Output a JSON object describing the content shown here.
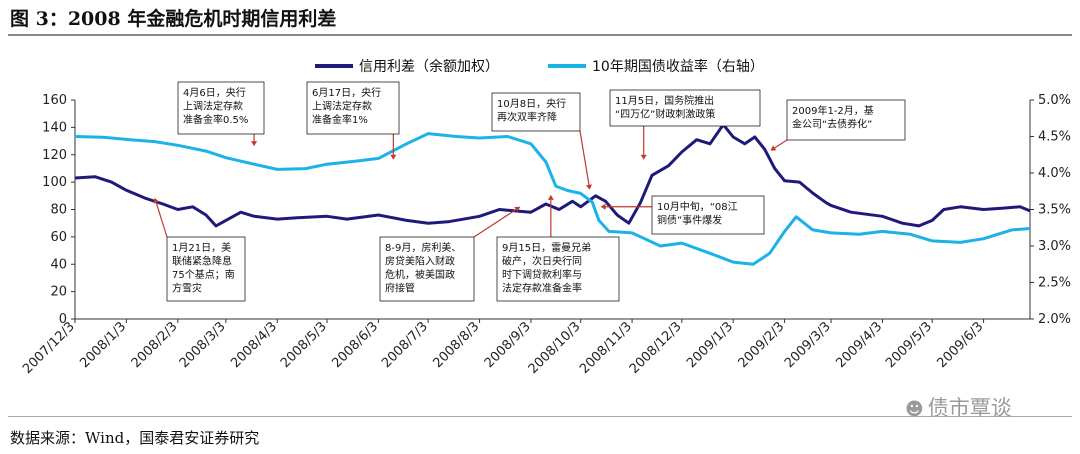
{
  "header": {
    "title": "图 3：2008 年金融危机时期信用利差"
  },
  "footer": {
    "source": "数据来源：Wind，国泰君安证券研究"
  },
  "watermark": {
    "text": "债市覃谈",
    "icon": "wechat-icon"
  },
  "colors": {
    "credit_spread": "#1f1a7a",
    "yield_10y": "#1ab2e8",
    "annotation_arrow": "#c0392b",
    "axis": "#333333"
  },
  "chart_data": {
    "type": "line",
    "title": "",
    "xlabel": "",
    "ylabel": "",
    "legend_position": "top-center",
    "grid": false,
    "x_ticks": [
      "2007/12/3",
      "2008/1/3",
      "2008/2/3",
      "2008/3/3",
      "2008/4/3",
      "2008/5/3",
      "2008/6/3",
      "2008/7/3",
      "2008/8/3",
      "2008/9/3",
      "2008/10/3",
      "2008/11/3",
      "2008/12/3",
      "2009/1/3",
      "2009/2/3",
      "2009/3/3",
      "2009/4/3",
      "2009/5/3",
      "2009/6/3"
    ],
    "x_range": [
      "2007/12/3",
      "2009/7/1"
    ],
    "y_left": {
      "range": [
        0,
        160
      ],
      "ticks": [
        "0",
        "20",
        "40",
        "60",
        "80",
        "100",
        "120",
        "140",
        "160"
      ]
    },
    "y_right": {
      "range": [
        2.0,
        5.0
      ],
      "ticks": [
        "2.0%",
        "2.5%",
        "3.0%",
        "3.5%",
        "4.0%",
        "4.5%",
        "5.0%"
      ]
    },
    "series": [
      {
        "name": "信用利差（余额加权）",
        "axis": "left",
        "color": "#1f1a7a",
        "points": [
          [
            "2007/12/3",
            103
          ],
          [
            "2007/12/15",
            104
          ],
          [
            "2007/12/25",
            100
          ],
          [
            "2008/1/3",
            94
          ],
          [
            "2008/1/15",
            88
          ],
          [
            "2008/1/25",
            84
          ],
          [
            "2008/2/3",
            80
          ],
          [
            "2008/2/12",
            82
          ],
          [
            "2008/2/20",
            76
          ],
          [
            "2008/2/26",
            68
          ],
          [
            "2008/3/3",
            72
          ],
          [
            "2008/3/12",
            78
          ],
          [
            "2008/3/20",
            75
          ],
          [
            "2008/4/3",
            73
          ],
          [
            "2008/4/15",
            74
          ],
          [
            "2008/5/3",
            75
          ],
          [
            "2008/5/15",
            73
          ],
          [
            "2008/6/3",
            76
          ],
          [
            "2008/6/20",
            72
          ],
          [
            "2008/7/3",
            70
          ],
          [
            "2008/7/15",
            71
          ],
          [
            "2008/8/3",
            75
          ],
          [
            "2008/8/15",
            80
          ],
          [
            "2008/9/3",
            78
          ],
          [
            "2008/9/12",
            84
          ],
          [
            "2008/9/20",
            80
          ],
          [
            "2008/9/28",
            86
          ],
          [
            "2008/10/3",
            82
          ],
          [
            "2008/10/12",
            90
          ],
          [
            "2008/10/18",
            86
          ],
          [
            "2008/10/25",
            76
          ],
          [
            "2008/11/1",
            70
          ],
          [
            "2008/11/8",
            85
          ],
          [
            "2008/11/15",
            105
          ],
          [
            "2008/11/25",
            112
          ],
          [
            "2008/12/3",
            122
          ],
          [
            "2008/12/12",
            131
          ],
          [
            "2008/12/20",
            128
          ],
          [
            "2008/12/28",
            142
          ],
          [
            "2009/1/3",
            133
          ],
          [
            "2009/1/10",
            128
          ],
          [
            "2009/1/16",
            133
          ],
          [
            "2009/1/22",
            124
          ],
          [
            "2009/1/28",
            110
          ],
          [
            "2009/2/3",
            101
          ],
          [
            "2009/2/12",
            100
          ],
          [
            "2009/2/20",
            92
          ],
          [
            "2009/2/28",
            85
          ],
          [
            "2009/3/3",
            83
          ],
          [
            "2009/3/15",
            78
          ],
          [
            "2009/4/3",
            75
          ],
          [
            "2009/4/15",
            70
          ],
          [
            "2009/4/25",
            68
          ],
          [
            "2009/5/3",
            72
          ],
          [
            "2009/5/10",
            80
          ],
          [
            "2009/5/20",
            82
          ],
          [
            "2009/6/3",
            80
          ],
          [
            "2009/6/15",
            81
          ],
          [
            "2009/6/25",
            82
          ],
          [
            "2009/7/1",
            79
          ]
        ]
      },
      {
        "name": "10年期国债收益率（右轴）",
        "axis": "right",
        "color": "#1ab2e8",
        "points": [
          [
            "2007/12/3",
            4.5
          ],
          [
            "2007/12/20",
            4.49
          ],
          [
            "2008/1/3",
            4.46
          ],
          [
            "2008/1/20",
            4.43
          ],
          [
            "2008/2/3",
            4.38
          ],
          [
            "2008/2/20",
            4.3
          ],
          [
            "2008/3/3",
            4.21
          ],
          [
            "2008/3/20",
            4.12
          ],
          [
            "2008/4/3",
            4.05
          ],
          [
            "2008/4/20",
            4.06
          ],
          [
            "2008/5/3",
            4.12
          ],
          [
            "2008/5/20",
            4.16
          ],
          [
            "2008/6/3",
            4.2
          ],
          [
            "2008/6/20",
            4.4
          ],
          [
            "2008/7/3",
            4.54
          ],
          [
            "2008/7/20",
            4.5
          ],
          [
            "2008/8/3",
            4.48
          ],
          [
            "2008/8/20",
            4.5
          ],
          [
            "2008/9/3",
            4.4
          ],
          [
            "2008/9/12",
            4.15
          ],
          [
            "2008/9/18",
            3.82
          ],
          [
            "2008/9/25",
            3.76
          ],
          [
            "2008/10/3",
            3.72
          ],
          [
            "2008/10/10",
            3.6
          ],
          [
            "2008/10/14",
            3.35
          ],
          [
            "2008/10/20",
            3.2
          ],
          [
            "2008/11/3",
            3.18
          ],
          [
            "2008/11/20",
            3.0
          ],
          [
            "2008/12/3",
            3.04
          ],
          [
            "2008/12/20",
            2.9
          ],
          [
            "2009/1/3",
            2.78
          ],
          [
            "2009/1/15",
            2.75
          ],
          [
            "2009/1/25",
            2.9
          ],
          [
            "2009/2/3",
            3.2
          ],
          [
            "2009/2/10",
            3.4
          ],
          [
            "2009/2/20",
            3.22
          ],
          [
            "2009/3/3",
            3.18
          ],
          [
            "2009/3/20",
            3.16
          ],
          [
            "2009/4/3",
            3.2
          ],
          [
            "2009/4/20",
            3.16
          ],
          [
            "2009/5/3",
            3.07
          ],
          [
            "2009/5/20",
            3.05
          ],
          [
            "2009/6/3",
            3.1
          ],
          [
            "2009/6/20",
            3.22
          ],
          [
            "2009/7/1",
            3.24
          ]
        ]
      }
    ],
    "annotations": [
      {
        "text": [
          "4月6日，央行",
          "上调法定存款",
          "准备金率0.5%"
        ],
        "target": [
          "2008/3/20",
          130
        ]
      },
      {
        "text": [
          "6月17日，央行",
          "上调法定存款",
          "准备金率1%"
        ],
        "target": [
          "2008/6/12",
          120
        ]
      },
      {
        "text": [
          "10月8日，央行",
          "再次双率齐降"
        ],
        "target": [
          "2008/10/8",
          98
        ]
      },
      {
        "text": [
          "11月5日，国务院推出",
          "“四万亿”财政刺激政策"
        ],
        "target": [
          "2008/11/10",
          120
        ]
      },
      {
        "text": [
          "2009年1-2月，基",
          "金公司“去债券化”"
        ],
        "target": [
          "2009/1/28",
          125
        ]
      },
      {
        "text": [
          "1月21日，美",
          "联储紧急降息",
          "75个基点；南",
          "方雪灾"
        ],
        "target": [
          "2008/1/21",
          85
        ]
      },
      {
        "text": [
          "8-9月，房利美、",
          "房贷美陷入财政",
          "危机，被美国政",
          "府接管"
        ],
        "target": [
          "2008/8/25",
          80
        ]
      },
      {
        "text": [
          "9月15日，雷曼兄弟",
          "破产，次日央行同",
          "时下调贷款利率与",
          "法定存款准备金率"
        ],
        "target": [
          "2008/9/15",
          87
        ]
      },
      {
        "text": [
          "10月中旬，“08江",
          "铜债”事件爆发"
        ],
        "target": [
          "2008/10/18",
          82
        ]
      }
    ]
  }
}
